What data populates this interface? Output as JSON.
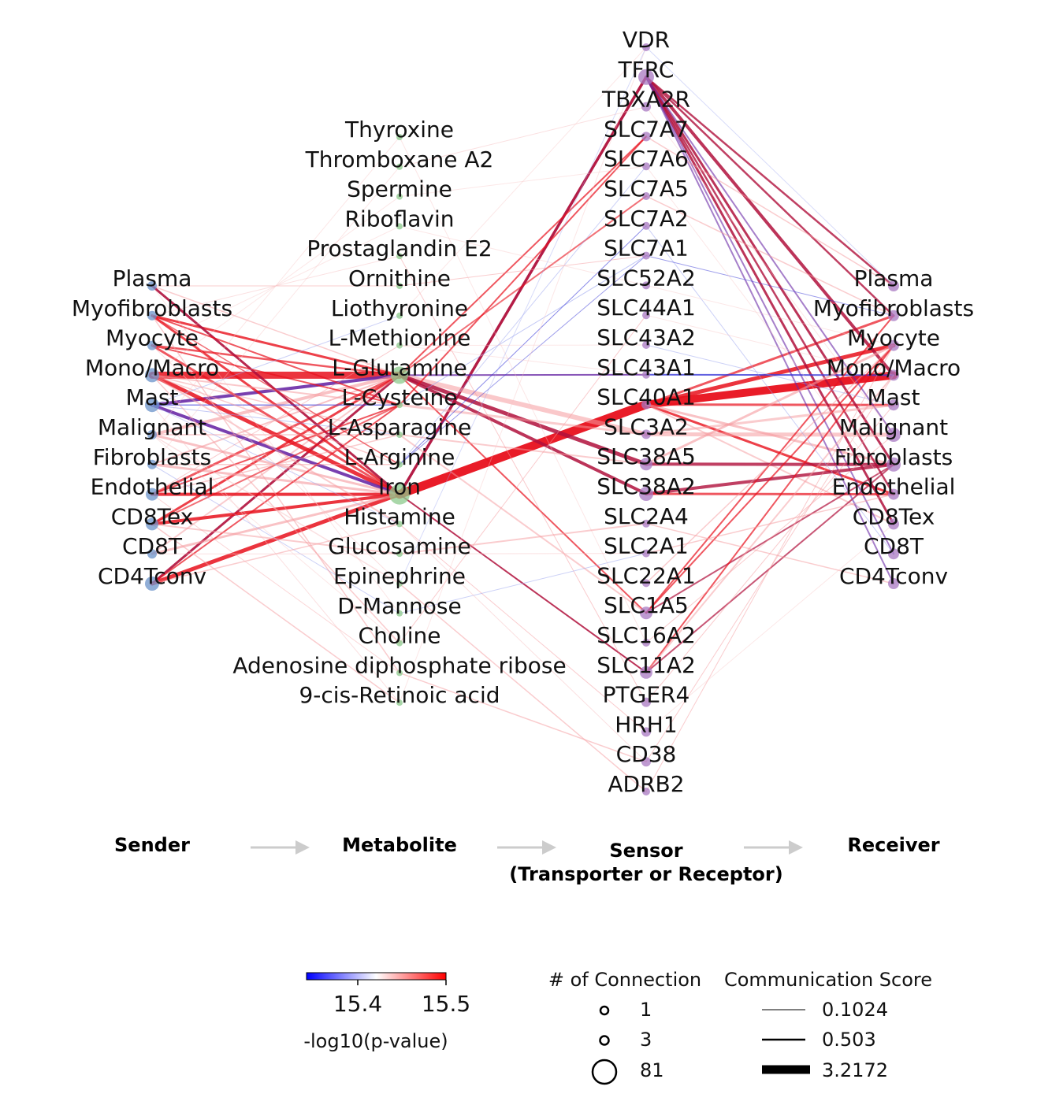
{
  "diagram": {
    "senders": [
      "Plasma",
      "Myofibroblasts",
      "Myocyte",
      "Mono/Macro",
      "Mast",
      "Malignant",
      "Fibroblasts",
      "Endothelial",
      "CD8Tex",
      "CD8T",
      "CD4Tconv"
    ],
    "metabolites": [
      "Thyroxine",
      "Thromboxane A2",
      "Spermine",
      "Riboflavin",
      "Prostaglandin E2",
      "Ornithine",
      "Liothyronine",
      "L-Methionine",
      "L-Glutamine",
      "L-Cysteine",
      "L-Asparagine",
      "L-Arginine",
      "Iron",
      "Histamine",
      "Glucosamine",
      "Epinephrine",
      "D-Mannose",
      "Choline",
      "Adenosine diphosphate ribose",
      "9-cis-Retinoic acid"
    ],
    "sensors": [
      "VDR",
      "TFRC",
      "TBXA2R",
      "SLC7A7",
      "SLC7A6",
      "SLC7A5",
      "SLC7A2",
      "SLC7A1",
      "SLC52A2",
      "SLC44A1",
      "SLC43A2",
      "SLC43A1",
      "SLC40A1",
      "SLC3A2",
      "SLC38A5",
      "SLC38A2",
      "SLC2A4",
      "SLC2A1",
      "SLC22A1",
      "SLC1A5",
      "SLC16A2",
      "SLC11A2",
      "PTGER4",
      "HRH1",
      "CD38",
      "ADRB2"
    ],
    "receivers": [
      "Plasma",
      "Myofibroblasts",
      "Myocyte",
      "Mono/Macro",
      "Mast",
      "Malignant",
      "Fibroblasts",
      "Endothelial",
      "CD8Tex",
      "CD8T",
      "CD4Tconv"
    ],
    "colors": {
      "sender_node": "#6b93c9",
      "metabolite_node": "#8cc98c",
      "sensor_node": "#a878c2",
      "receiver_node": "#a878c2",
      "high": "#ff0000",
      "low": "#0000ff",
      "arrow": "#cccccc"
    }
  },
  "headers": {
    "sender": "Sender",
    "metabolite": "Metabolite",
    "sensor_line1": "Sensor",
    "sensor_line2": "(Transporter or Receptor)",
    "receiver": "Receiver"
  },
  "legend": {
    "colorbar": {
      "ticks": [
        "15.4",
        "15.5"
      ],
      "label": "-log10(p-value)",
      "min_color": "#0000ff",
      "mid_color": "#ffffff",
      "max_color": "#ff0000"
    },
    "connections": {
      "title": "# of Connection",
      "items": [
        "1",
        "3",
        "81"
      ]
    },
    "score": {
      "title": "Communication Score",
      "items": [
        "0.1024",
        "0.503",
        "3.2172"
      ]
    }
  }
}
